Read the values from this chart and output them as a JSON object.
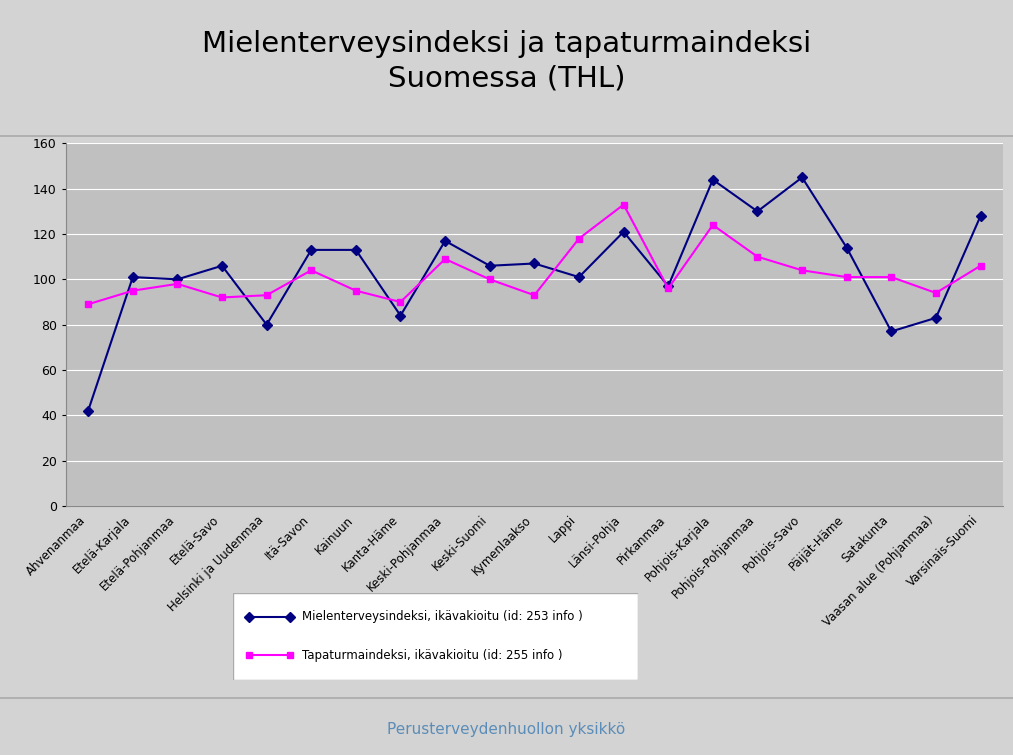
{
  "title": "Mielenterveysindeksi ja tapaturmaindeksi\nSuomessa (THL)",
  "categories": [
    "Ahvenanmaa",
    "Etelä-Karjala",
    "Etelä-Pohjanmaa",
    "Etelä-Savo",
    "Helsinki ja Uudenmaa",
    "Itä-Savon",
    "Kainuun",
    "Kanta-Häme",
    "Keski-Pohjanmaa",
    "Keski-Suomi",
    "Kymenlaakso",
    "Lappi",
    "Länsi-Pohja",
    "Pirkanmaa",
    "Pohjois-Karjala",
    "Pohjois-Pohjanmaa",
    "Pohjois-Savo",
    "Päijät-Häme",
    "Satakunta",
    "Vaasan alue (Pohjanmaa)",
    "Varsinais-Suomi"
  ],
  "mielenterveys": [
    42,
    101,
    100,
    106,
    80,
    113,
    113,
    84,
    117,
    106,
    107,
    101,
    121,
    97,
    144,
    130,
    145,
    114,
    77,
    83,
    128
  ],
  "tapaturma": [
    89,
    95,
    98,
    92,
    93,
    104,
    95,
    90,
    109,
    100,
    93,
    118,
    133,
    96,
    124,
    110,
    104,
    101,
    101,
    94,
    106
  ],
  "mielenterveys_color": "#000080",
  "tapaturma_color": "#FF00FF",
  "ylim": [
    0,
    160
  ],
  "yticks": [
    0,
    20,
    40,
    60,
    80,
    100,
    120,
    140,
    160
  ],
  "legend_label1": "Mielenterveysindeksi, ikävakioitu (id: 253 info )",
  "legend_label2": "Tapaturmaindeksi, ikävakioitu (id: 255 info )",
  "footer": "Perusterveydenhuollon yksikkö",
  "plot_bg": "#C0C0C0",
  "outer_bg": "#D3D3D3",
  "title_bg": "#FFFFFF",
  "title_color": "#000000",
  "footer_color": "#5B8DB8"
}
